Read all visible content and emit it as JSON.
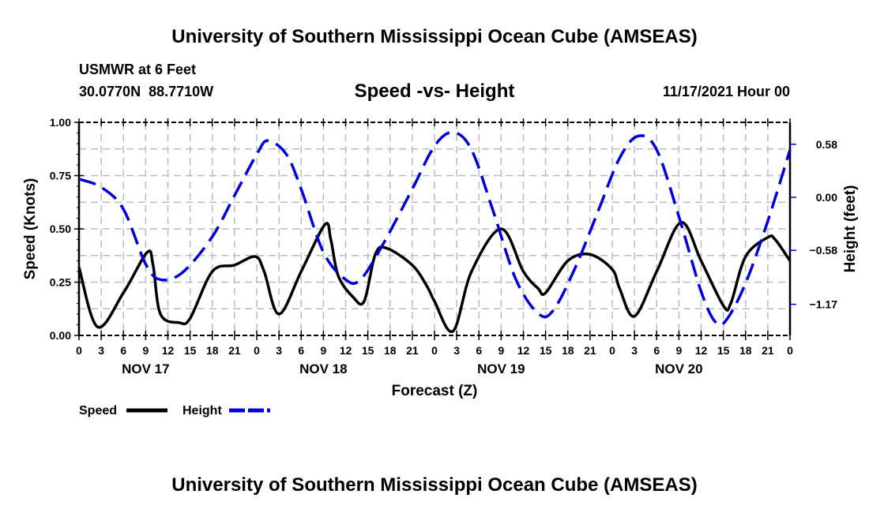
{
  "header": {
    "title": "University of Southern Mississippi Ocean Cube (AMSEAS)",
    "station": "USMWR at 6 Feet",
    "coords": "30.0770N  88.7710W",
    "date": "11/17/2021 Hour 00"
  },
  "footer": {
    "title": "University of Southern Mississippi Ocean Cube (AMSEAS)"
  },
  "chart_data": {
    "type": "line",
    "title": "Speed -vs- Height",
    "xlabel": "Forecast (Z)",
    "ylabel": "Speed (Knots)",
    "y2label": "Height (feet)",
    "xlim": [
      0,
      96
    ],
    "ylim": [
      0,
      1
    ],
    "y2lim": [
      -1.51,
      0.82
    ],
    "x_tick_labels": [
      "0",
      "3",
      "6",
      "9",
      "12",
      "15",
      "18",
      "21",
      "0",
      "3",
      "6",
      "9",
      "12",
      "15",
      "18",
      "21",
      "0",
      "3",
      "6",
      "9",
      "12",
      "15",
      "18",
      "21",
      "0",
      "3",
      "6",
      "9",
      "12",
      "15",
      "18",
      "21",
      "0"
    ],
    "day_labels": [
      {
        "hour": 9,
        "label": "NOV 17"
      },
      {
        "hour": 33,
        "label": "NOV 18"
      },
      {
        "hour": 57,
        "label": "NOV 19"
      },
      {
        "hour": 81,
        "label": "NOV 20"
      }
    ],
    "y_ticks": [
      "0.00",
      "0.25",
      "0.50",
      "0.75",
      "1.00"
    ],
    "y2_ticks": [
      {
        "v": 0.58,
        "label": "0.58"
      },
      {
        "v": 0,
        "label": "0.00"
      },
      {
        "v": -0.58,
        "label": "−0.58"
      },
      {
        "v": -1.17,
        "label": "−1.17"
      }
    ],
    "grid": true,
    "legend": "bottom-left",
    "series": [
      {
        "name": "Speed",
        "axis": "left",
        "color": "#000000",
        "dash": false,
        "x": [
          0,
          2.5,
          6,
          9.2,
          10,
          11,
          13.5,
          15,
          18,
          21,
          23.8,
          25,
          27,
          30,
          33.2,
          34,
          35,
          37,
          38.5,
          40,
          41.5,
          45,
          47,
          48,
          50.5,
          53,
          57,
          60,
          62,
          63,
          66,
          69,
          72,
          73,
          75,
          78,
          81.3,
          84,
          87,
          88,
          90,
          93,
          94,
          96
        ],
        "y": [
          0.32,
          0.04,
          0.2,
          0.39,
          0.33,
          0.1,
          0.06,
          0.08,
          0.3,
          0.33,
          0.37,
          0.3,
          0.1,
          0.3,
          0.52,
          0.45,
          0.28,
          0.18,
          0.16,
          0.38,
          0.41,
          0.33,
          0.23,
          0.16,
          0.02,
          0.3,
          0.5,
          0.3,
          0.22,
          0.2,
          0.35,
          0.38,
          0.31,
          0.22,
          0.09,
          0.3,
          0.53,
          0.35,
          0.14,
          0.15,
          0.37,
          0.46,
          0.45,
          0.35
        ]
      },
      {
        "name": "Height",
        "axis": "right",
        "color": "#0000dd",
        "dash": true,
        "x": [
          0,
          3,
          6,
          9,
          11,
          14,
          18,
          21,
          24,
          25.5,
          28,
          30,
          33,
          36,
          38,
          41,
          45,
          48,
          50.5,
          53,
          56,
          59,
          62,
          64,
          67,
          70,
          73,
          75.5,
          78,
          81,
          84,
          86,
          87.5,
          90,
          93,
          96
        ],
        "y": [
          0.2,
          0.11,
          -0.13,
          -0.73,
          -0.9,
          -0.82,
          -0.43,
          0.02,
          0.47,
          0.62,
          0.47,
          0.09,
          -0.6,
          -0.9,
          -0.9,
          -0.52,
          0.09,
          0.56,
          0.71,
          0.52,
          -0.17,
          -0.9,
          -1.27,
          -1.24,
          -0.77,
          -0.17,
          0.43,
          0.67,
          0.52,
          -0.21,
          -1.03,
          -1.37,
          -1.33,
          -0.94,
          -0.26,
          0.52
        ]
      }
    ]
  }
}
